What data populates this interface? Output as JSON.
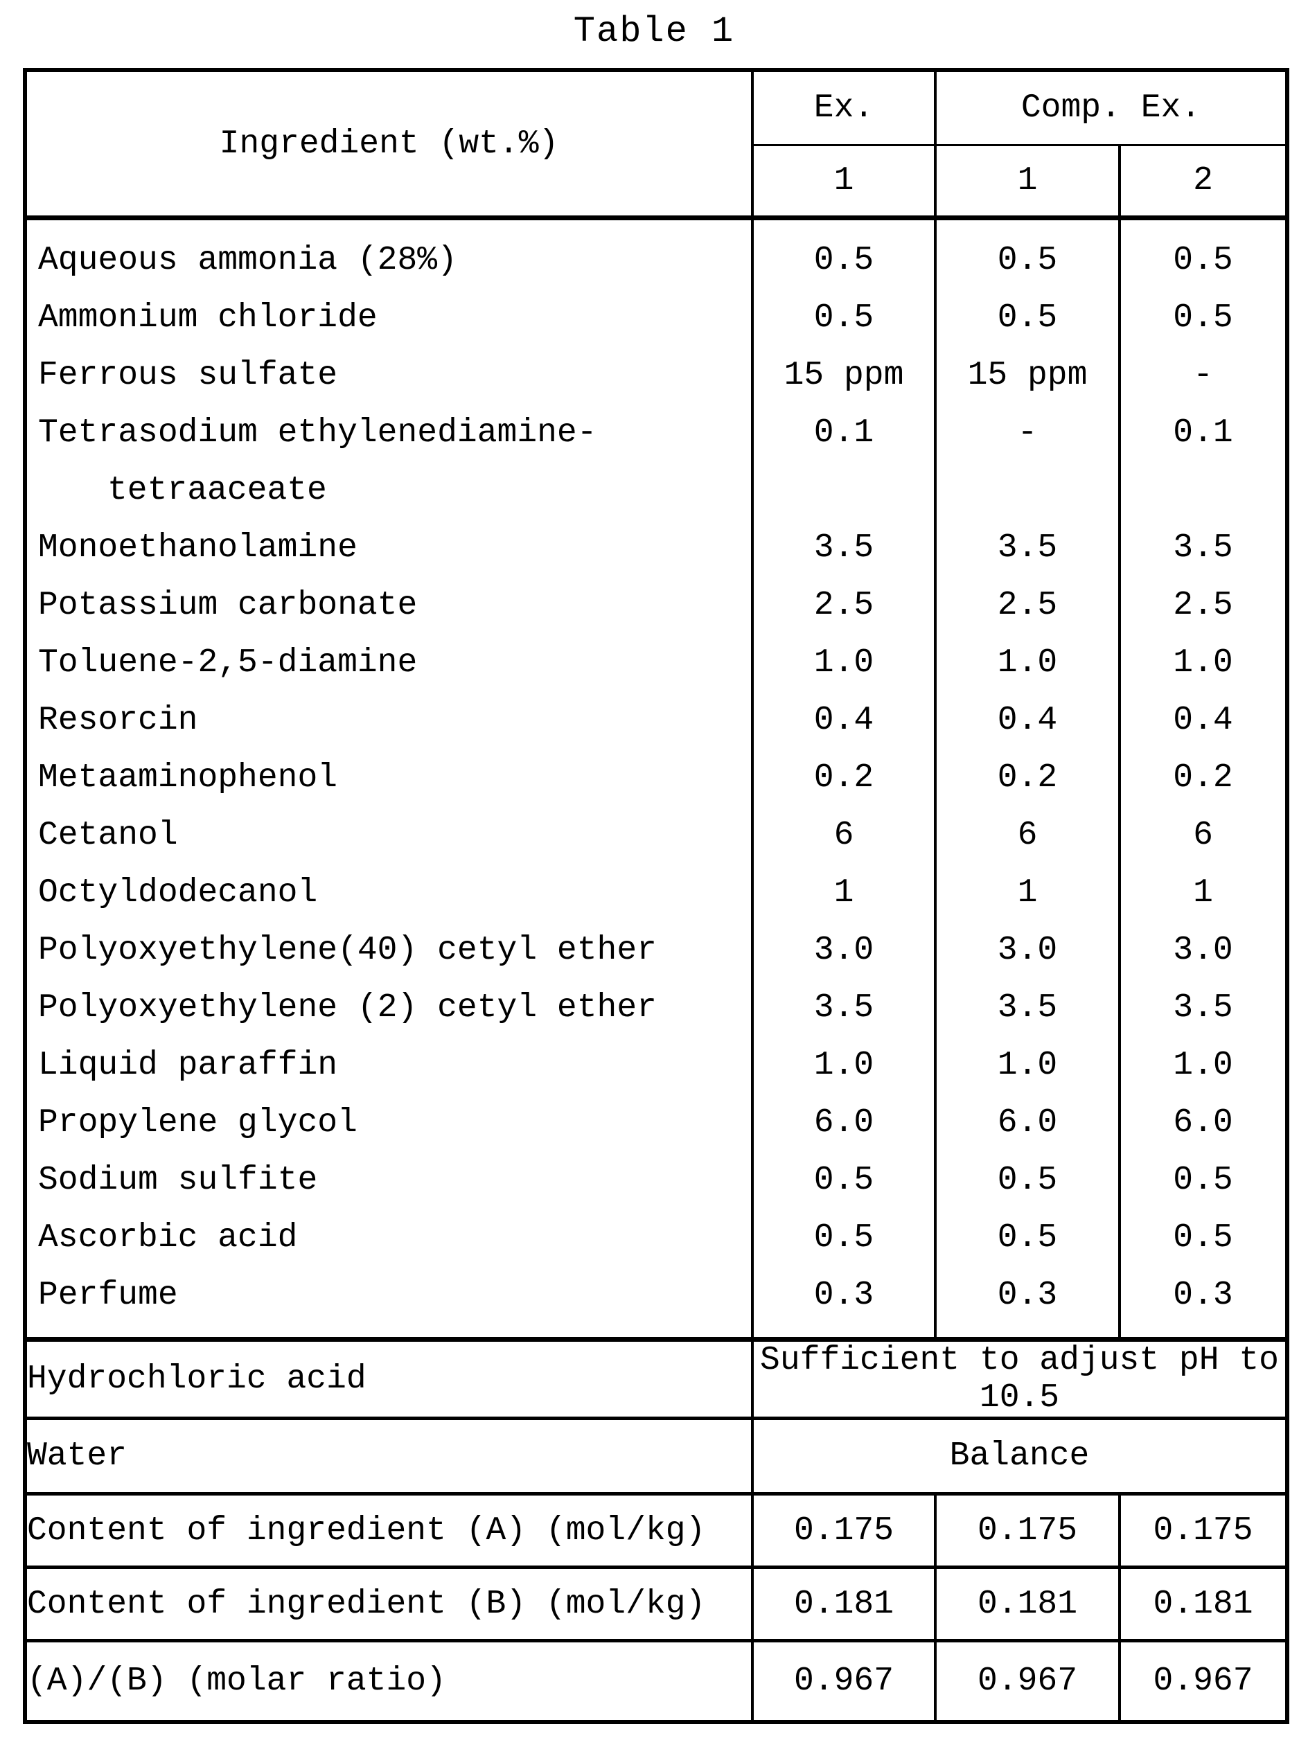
{
  "title": "Table 1",
  "colors": {
    "background": "#ffffff",
    "text": "#000000",
    "border": "#000000"
  },
  "table": {
    "header": {
      "ingredient_label": "Ingredient (wt.%)",
      "ex_label": "Ex.",
      "comp_ex_label": "Comp. Ex.",
      "ex_numbers": [
        "1",
        "1",
        "2"
      ]
    },
    "ingredients": [
      {
        "label": "Aqueous ammonia (28%)",
        "values": [
          "0.5",
          "0.5",
          "0.5"
        ]
      },
      {
        "label": "Ammonium chloride",
        "values": [
          "0.5",
          "0.5",
          "0.5"
        ]
      },
      {
        "label": "Ferrous sulfate",
        "values": [
          "15 ppm",
          "15 ppm",
          "-"
        ]
      },
      {
        "label": "Tetrasodium ethylenediamine-",
        "label_line2": "tetraaceate",
        "values": [
          "0.1",
          "-",
          "0.1"
        ]
      },
      {
        "label": "Monoethanolamine",
        "values": [
          "3.5",
          "3.5",
          "3.5"
        ]
      },
      {
        "label": "Potassium carbonate",
        "values": [
          "2.5",
          "2.5",
          "2.5"
        ]
      },
      {
        "label": "Toluene-2,5-diamine",
        "values": [
          "1.0",
          "1.0",
          "1.0"
        ]
      },
      {
        "label": "Resorcin",
        "values": [
          "0.4",
          "0.4",
          "0.4"
        ]
      },
      {
        "label": "Metaaminophenol",
        "values": [
          "0.2",
          "0.2",
          "0.2"
        ]
      },
      {
        "label": "Cetanol",
        "values": [
          "6",
          "6",
          "6"
        ]
      },
      {
        "label": "Octyldodecanol",
        "values": [
          "1",
          "1",
          "1"
        ]
      },
      {
        "label": "Polyoxyethylene(40) cetyl ether",
        "values": [
          "3.0",
          "3.0",
          "3.0"
        ]
      },
      {
        "label": "Polyoxyethylene (2) cetyl ether",
        "values": [
          "3.5",
          "3.5",
          "3.5"
        ]
      },
      {
        "label": "Liquid paraffin",
        "values": [
          "1.0",
          "1.0",
          "1.0"
        ]
      },
      {
        "label": "Propylene glycol",
        "values": [
          "6.0",
          "6.0",
          "6.0"
        ]
      },
      {
        "label": "Sodium sulfite",
        "values": [
          "0.5",
          "0.5",
          "0.5"
        ]
      },
      {
        "label": "Ascorbic acid",
        "values": [
          "0.5",
          "0.5",
          "0.5"
        ]
      },
      {
        "label": "Perfume",
        "values": [
          "0.3",
          "0.3",
          "0.3"
        ]
      }
    ],
    "special_rows": [
      {
        "label": "Hydrochloric acid",
        "value": "Sufficient to adjust pH to 10.5"
      },
      {
        "label": "Water",
        "value": "Balance"
      }
    ],
    "summary_rows": [
      {
        "label": "Content of ingredient (A) (mol/kg)",
        "values": [
          "0.175",
          "0.175",
          "0.175"
        ]
      },
      {
        "label": "Content of ingredient (B) (mol/kg)",
        "values": [
          "0.181",
          "0.181",
          "0.181"
        ]
      },
      {
        "label": "(A)/(B) (molar ratio)",
        "values": [
          "0.967",
          "0.967",
          "0.967"
        ]
      }
    ]
  }
}
